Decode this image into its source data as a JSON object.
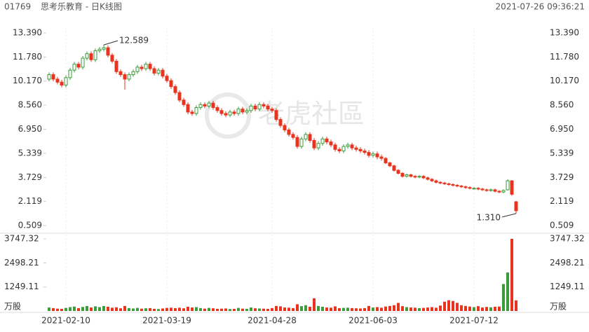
{
  "header": {
    "code": "01769",
    "name": "思考乐教育 - 日K线图",
    "time": "2021-07-26 09:36:21"
  },
  "watermark": "老虎社區",
  "chart_data": {
    "type": "candlestick",
    "up_color": "#3a9d3a",
    "down_color": "#e8331e",
    "categories": [
      null,
      null,
      null,
      null,
      "2021-02-10",
      null,
      null,
      null,
      null,
      null,
      null,
      null,
      null,
      null,
      null,
      null,
      null,
      null,
      null,
      null,
      null,
      null,
      null,
      null,
      null,
      null,
      null,
      null,
      "2021-03-19",
      null,
      null,
      null,
      null,
      null,
      null,
      null,
      null,
      null,
      null,
      null,
      null,
      null,
      null,
      null,
      null,
      null,
      null,
      null,
      null,
      null,
      null,
      null,
      null,
      "2021-04-28",
      null,
      null,
      null,
      null,
      null,
      null,
      null,
      null,
      null,
      null,
      null,
      null,
      null,
      null,
      null,
      null,
      null,
      null,
      null,
      null,
      null,
      null,
      null,
      "2021-06-03",
      null,
      null,
      null,
      null,
      null,
      null,
      null,
      null,
      null,
      null,
      null,
      null,
      null,
      null,
      null,
      null,
      null,
      null,
      null,
      null,
      null,
      null,
      null,
      "2021-07-12",
      null,
      null,
      null,
      null,
      null,
      null,
      null,
      null,
      null,
      null
    ],
    "open": [
      10.3,
      10.6,
      10.3,
      10.1,
      9.9,
      10.4,
      10.9,
      11.3,
      11.1,
      11.7,
      12.0,
      11.6,
      12.2,
      12.3,
      12.4,
      11.9,
      11.5,
      10.8,
      10.6,
      10.3,
      10.6,
      10.8,
      11.1,
      11.0,
      11.3,
      11.0,
      10.7,
      10.9,
      10.5,
      10.2,
      9.8,
      9.4,
      8.9,
      8.6,
      8.1,
      8.0,
      8.4,
      8.6,
      8.5,
      8.7,
      8.4,
      8.2,
      8.0,
      7.9,
      8.1,
      8.0,
      8.3,
      8.1,
      8.2,
      8.5,
      8.3,
      8.6,
      8.5,
      8.3,
      8.2,
      7.6,
      7.2,
      6.9,
      6.6,
      6.4,
      5.8,
      6.3,
      6.6,
      6.2,
      5.7,
      6.0,
      6.3,
      6.1,
      5.9,
      5.6,
      5.5,
      5.8,
      5.9,
      5.7,
      5.6,
      5.5,
      5.4,
      5.2,
      5.3,
      5.1,
      5.0,
      4.7,
      4.5,
      4.2,
      4.0,
      3.8,
      3.9,
      3.8,
      3.75,
      3.8,
      3.7,
      3.6,
      3.5,
      3.4,
      3.35,
      3.3,
      3.25,
      3.2,
      3.15,
      3.1,
      3.05,
      3.0,
      3.0,
      2.95,
      2.9,
      2.85,
      2.9,
      2.8,
      2.75,
      2.9,
      3.5,
      2.1
    ],
    "high": [
      10.75,
      10.75,
      10.45,
      10.25,
      10.55,
      11.05,
      11.45,
      11.45,
      11.85,
      12.15,
      12.15,
      12.35,
      12.45,
      12.589,
      12.55,
      12.05,
      11.65,
      10.95,
      10.75,
      10.75,
      10.95,
      11.25,
      11.25,
      11.45,
      11.45,
      11.15,
      11.05,
      11.05,
      10.65,
      10.35,
      9.95,
      9.55,
      9.05,
      8.75,
      8.25,
      8.55,
      8.75,
      8.75,
      8.85,
      8.85,
      8.55,
      8.35,
      8.15,
      8.25,
      8.25,
      8.45,
      8.45,
      8.35,
      8.65,
      8.65,
      8.75,
      8.75,
      8.65,
      8.45,
      8.35,
      7.75,
      7.35,
      7.05,
      6.75,
      6.55,
      6.45,
      6.75,
      6.75,
      6.35,
      6.15,
      6.45,
      6.45,
      6.25,
      6.05,
      5.75,
      5.95,
      6.05,
      6.05,
      5.85,
      5.75,
      5.65,
      5.55,
      5.45,
      5.45,
      5.25,
      5.08,
      4.78,
      4.58,
      4.28,
      4.08,
      3.98,
      3.98,
      3.88,
      3.88,
      3.88,
      3.78,
      3.68,
      3.58,
      3.48,
      3.43,
      3.38,
      3.33,
      3.28,
      3.23,
      3.18,
      3.13,
      3.08,
      3.08,
      3.03,
      2.98,
      2.98,
      2.98,
      2.88,
      2.93,
      3.6,
      3.55,
      2.15
    ],
    "low": [
      10.15,
      10.15,
      9.95,
      9.75,
      9.75,
      10.25,
      10.75,
      10.95,
      10.95,
      11.55,
      11.45,
      11.45,
      12.05,
      12.15,
      11.75,
      11.35,
      10.65,
      10.45,
      9.6,
      10.15,
      10.45,
      10.65,
      10.85,
      10.85,
      10.85,
      10.55,
      10.55,
      10.35,
      10.05,
      9.65,
      9.25,
      8.75,
      8.45,
      7.95,
      7.85,
      7.85,
      8.25,
      8.35,
      8.35,
      8.25,
      8.05,
      7.85,
      7.75,
      7.75,
      7.85,
      7.85,
      7.95,
      7.95,
      8.05,
      8.15,
      8.15,
      8.35,
      8.15,
      8.05,
      7.45,
      7.05,
      6.75,
      6.45,
      6.25,
      5.65,
      5.65,
      6.15,
      6.05,
      5.55,
      5.55,
      5.85,
      5.95,
      5.75,
      5.45,
      5.35,
      5.35,
      5.65,
      5.55,
      5.45,
      5.35,
      5.25,
      5.05,
      5.05,
      4.95,
      4.85,
      4.62,
      4.42,
      4.12,
      3.92,
      3.72,
      3.72,
      3.72,
      3.67,
      3.67,
      3.62,
      3.52,
      3.42,
      3.32,
      3.27,
      3.22,
      3.17,
      3.12,
      3.07,
      3.02,
      2.97,
      2.92,
      2.92,
      2.87,
      2.82,
      2.77,
      2.77,
      2.72,
      2.67,
      2.67,
      2.85,
      2.5,
      1.31
    ],
    "close": [
      10.6,
      10.3,
      10.1,
      9.9,
      10.4,
      10.9,
      11.3,
      11.1,
      11.7,
      12.0,
      11.6,
      12.2,
      12.3,
      12.4,
      11.9,
      11.5,
      10.8,
      10.6,
      10.3,
      10.6,
      10.8,
      11.1,
      11.0,
      11.3,
      11.0,
      10.7,
      10.9,
      10.5,
      10.2,
      9.8,
      9.4,
      8.9,
      8.6,
      8.1,
      8.0,
      8.4,
      8.6,
      8.5,
      8.7,
      8.4,
      8.2,
      8.0,
      7.9,
      8.1,
      8.0,
      8.3,
      8.1,
      8.2,
      8.5,
      8.3,
      8.6,
      8.5,
      8.3,
      8.2,
      7.6,
      7.2,
      6.9,
      6.6,
      6.4,
      5.8,
      6.3,
      6.6,
      6.2,
      5.7,
      6.0,
      6.3,
      6.1,
      5.9,
      5.6,
      5.5,
      5.8,
      5.9,
      5.7,
      5.6,
      5.5,
      5.4,
      5.2,
      5.3,
      5.1,
      5.0,
      4.7,
      4.5,
      4.2,
      4.0,
      3.8,
      3.9,
      3.8,
      3.75,
      3.8,
      3.7,
      3.6,
      3.5,
      3.4,
      3.35,
      3.3,
      3.25,
      3.2,
      3.15,
      3.1,
      3.05,
      3.0,
      3.0,
      2.95,
      2.9,
      2.85,
      2.9,
      2.8,
      2.75,
      2.85,
      3.5,
      2.6,
      1.5
    ],
    "low_labels": [
      null,
      null,
      null,
      null,
      null,
      null,
      null,
      null,
      null,
      null,
      null,
      null,
      null,
      null,
      null,
      null,
      null,
      null,
      null,
      null,
      null,
      null,
      null,
      null,
      null,
      null,
      null,
      null,
      null,
      null,
      null,
      null,
      null,
      null,
      null,
      null,
      null,
      null,
      null,
      null,
      null,
      null,
      null,
      null,
      null,
      null,
      null,
      null,
      null,
      null,
      null,
      null,
      null,
      null,
      null,
      null,
      null,
      null,
      null,
      null,
      null,
      null,
      null,
      null,
      null,
      null,
      null,
      null,
      null,
      null,
      null,
      null,
      null,
      null,
      null,
      null,
      null,
      null,
      null,
      null,
      null,
      null,
      null,
      null,
      null,
      null,
      null,
      null,
      null,
      null,
      null,
      null,
      null,
      null,
      null,
      null,
      null,
      null,
      null,
      null,
      null,
      null,
      null,
      null,
      null,
      null,
      null,
      null,
      null,
      null,
      null,
      "1.310"
    ],
    "volume": [
      180,
      150,
      120,
      110,
      160,
      200,
      230,
      150,
      210,
      260,
      180,
      240,
      200,
      260,
      220,
      170,
      190,
      140,
      260,
      150,
      130,
      160,
      120,
      140,
      150,
      110,
      100,
      130,
      160,
      170,
      150,
      170,
      140,
      220,
      180,
      200,
      150,
      120,
      160,
      140,
      110,
      120,
      130,
      100,
      110,
      160,
      120,
      110,
      180,
      140,
      130,
      120,
      110,
      150,
      260,
      240,
      180,
      170,
      150,
      350,
      250,
      300,
      220,
      660,
      260,
      220,
      180,
      170,
      240,
      150,
      160,
      170,
      150,
      140,
      130,
      150,
      260,
      180,
      200,
      170,
      230,
      260,
      300,
      420,
      250,
      200,
      180,
      170,
      150,
      160,
      180,
      200,
      170,
      280,
      480,
      560,
      520,
      420,
      300,
      260,
      230,
      200,
      250,
      180,
      210,
      190,
      220,
      230,
      1400,
      2000,
      3747.32,
      550
    ],
    "ylim": [
      0.509,
      13.39
    ],
    "yticks": [
      {
        "value": 13.39,
        "label": "13.390"
      },
      {
        "value": 11.78,
        "label": "11.780"
      },
      {
        "value": 10.17,
        "label": "10.170"
      },
      {
        "value": 8.56,
        "label": "8.560"
      },
      {
        "value": 6.95,
        "label": "6.950"
      },
      5.339,
      3.729,
      2.119,
      0.509
    ],
    "volume_unit": "万股",
    "volume_ylim": [
      0,
      3747.32
    ],
    "volume_yticks": [
      3747.32,
      2498.21,
      1249.11
    ]
  }
}
